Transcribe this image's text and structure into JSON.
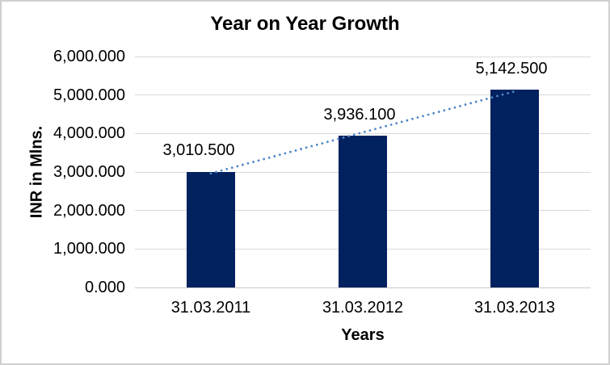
{
  "chart_data": {
    "type": "bar",
    "title": "Year on Year Growth",
    "xlabel": "Years",
    "ylabel": "INR in Mlns.",
    "categories": [
      "31.03.2011",
      "31.03.2012",
      "31.03.2013"
    ],
    "values": [
      3010.5,
      3936.1,
      5142.5
    ],
    "data_labels": [
      "3,010.500",
      "3,936.100",
      "5,142.500"
    ],
    "ylim": [
      0,
      6000
    ],
    "ytick_step": 1000,
    "ytick_labels": [
      "0.000",
      "1,000.000",
      "2,000.000",
      "3,000.000",
      "4,000.000",
      "5,000.000",
      "6,000.000"
    ],
    "grid": true,
    "legend": "none",
    "bar_color": "#02215f",
    "trendline": {
      "type": "linear",
      "style": "dotted",
      "color": "#4f86c6"
    }
  },
  "colors": {
    "background": "#ffffff",
    "border": "#cfcfcf",
    "gridline": "#d9d9d9",
    "axis_line": "#c9c9c9",
    "text": "#000000"
  }
}
